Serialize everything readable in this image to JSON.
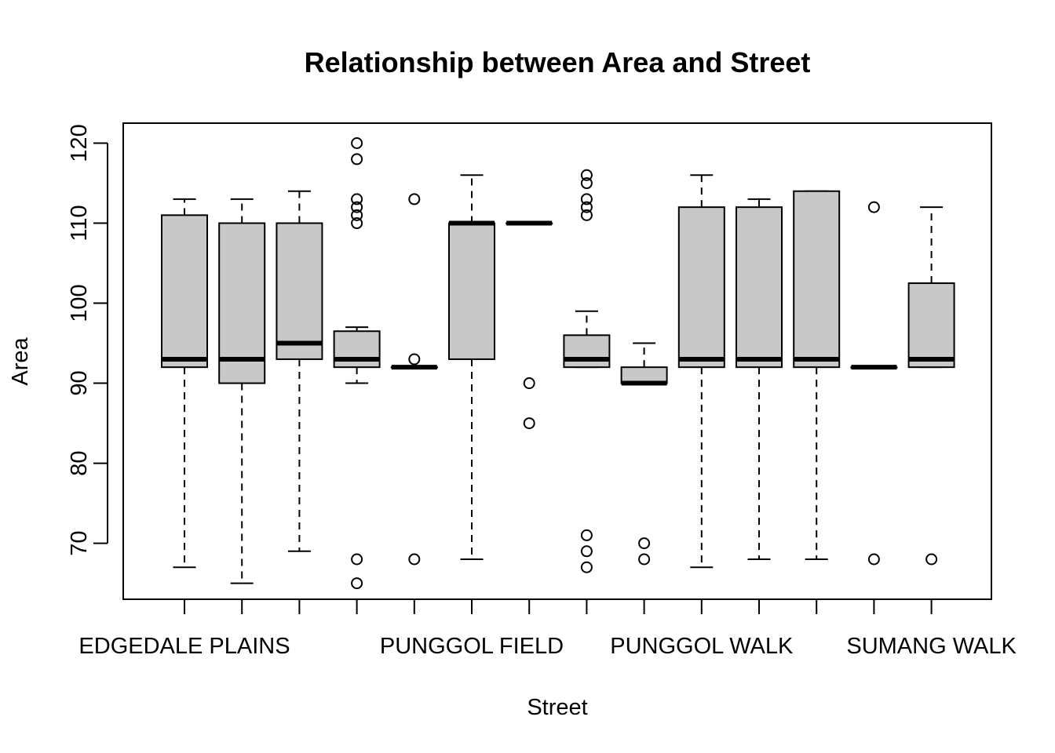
{
  "chart_data": {
    "type": "box",
    "title": "Relationship between Area and Street",
    "xlabel": "Street",
    "ylabel": "Area",
    "ylim": [
      63,
      122.5
    ],
    "yticks": [
      70,
      80,
      90,
      100,
      110,
      120
    ],
    "yticks_text": [
      "70",
      "80",
      "90",
      "100",
      "110",
      "120"
    ],
    "box_fill": "#c8c8c8",
    "x_tick_labels_shown": [
      {
        "index": 1,
        "label": "EDGEDALE PLAINS"
      },
      {
        "index": 6,
        "label": "PUNGGOL FIELD"
      },
      {
        "index": 10,
        "label": "PUNGGOL WALK"
      },
      {
        "index": 14,
        "label": "SUMANG WALK"
      }
    ],
    "boxes": [
      {
        "q1": 92,
        "median": 93,
        "q3": 111,
        "lower_whisker": 67,
        "upper_whisker": 113,
        "outliers": []
      },
      {
        "q1": 90,
        "median": 93,
        "q3": 110,
        "lower_whisker": 65,
        "upper_whisker": 113,
        "outliers": []
      },
      {
        "q1": 93,
        "median": 95,
        "q3": 110,
        "lower_whisker": 69,
        "upper_whisker": 114,
        "outliers": []
      },
      {
        "q1": 92,
        "median": 93,
        "q3": 96.5,
        "lower_whisker": 90,
        "upper_whisker": 97,
        "outliers": [
          120,
          118,
          113,
          112,
          111,
          110,
          68,
          65
        ]
      },
      {
        "q1": 92,
        "median": 92,
        "q3": 92,
        "lower_whisker": 92,
        "upper_whisker": 92,
        "outliers": [
          113,
          93,
          68
        ]
      },
      {
        "q1": 93,
        "median": 110,
        "q3": 110,
        "lower_whisker": 68,
        "upper_whisker": 116,
        "outliers": []
      },
      {
        "q1": 110,
        "median": 110,
        "q3": 110,
        "lower_whisker": 110,
        "upper_whisker": 110,
        "outliers": [
          90,
          85
        ]
      },
      {
        "q1": 92,
        "median": 93,
        "q3": 96,
        "lower_whisker": 92,
        "upper_whisker": 99,
        "outliers": [
          116,
          115,
          113,
          112,
          111,
          71,
          69,
          67
        ]
      },
      {
        "q1": 90,
        "median": 90,
        "q3": 92,
        "lower_whisker": 90,
        "upper_whisker": 95,
        "outliers": [
          70,
          68
        ]
      },
      {
        "q1": 92,
        "median": 93,
        "q3": 112,
        "lower_whisker": 67,
        "upper_whisker": 116,
        "outliers": []
      },
      {
        "q1": 92,
        "median": 93,
        "q3": 112,
        "lower_whisker": 68,
        "upper_whisker": 113,
        "outliers": []
      },
      {
        "q1": 92,
        "median": 93,
        "q3": 114,
        "lower_whisker": 68,
        "upper_whisker": 114,
        "outliers": []
      },
      {
        "q1": 92,
        "median": 92,
        "q3": 92,
        "lower_whisker": 92,
        "upper_whisker": 92,
        "outliers": [
          112,
          68
        ]
      },
      {
        "q1": 92,
        "median": 93,
        "q3": 102.5,
        "lower_whisker": 92,
        "upper_whisker": 112,
        "outliers": [
          68
        ]
      }
    ]
  }
}
